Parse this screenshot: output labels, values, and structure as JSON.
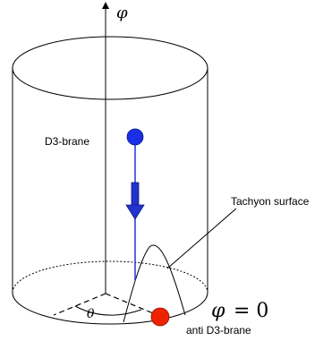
{
  "labels": {
    "phi_axis": "φ",
    "d3_brane": "D3-brane",
    "tachyon_surface": "Tachyon surface",
    "theta": "θ",
    "phi_zero_lhs": "φ",
    "phi_zero_rhs": "= 0",
    "anti_d3_brane": "anti D3-brane"
  },
  "colors": {
    "d3_ball": "#1a2fe6",
    "anti_ball": "#ee2200",
    "arrow": "#2233cc",
    "string": "#1f35e0",
    "lines": "#000000"
  }
}
